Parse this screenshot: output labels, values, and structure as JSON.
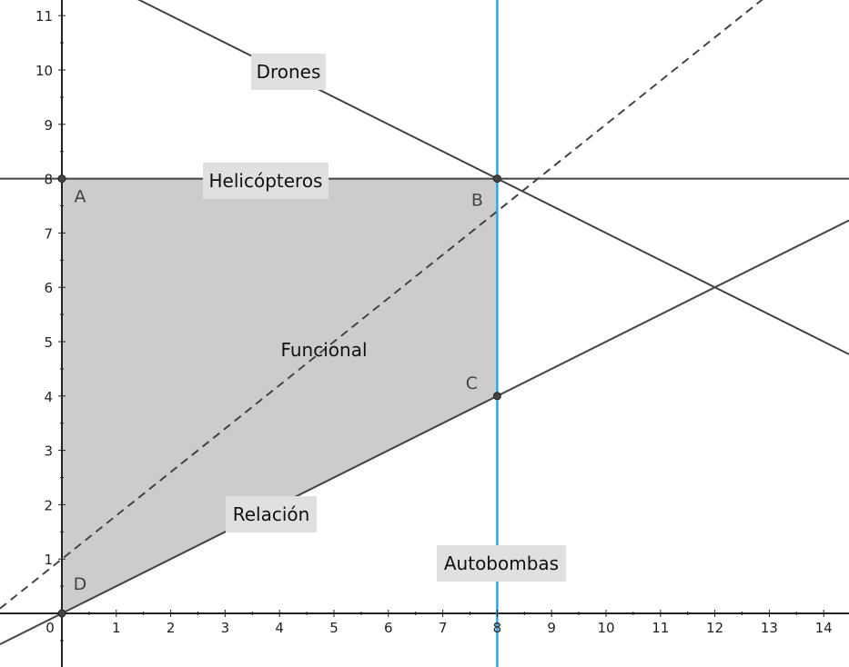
{
  "chart_data": {
    "type": "line",
    "xlim": [
      0,
      14.5
    ],
    "ylim": [
      -0.6,
      11.3
    ],
    "x_ticks": [
      0,
      1,
      2,
      3,
      4,
      5,
      6,
      7,
      8,
      9,
      10,
      11,
      12,
      13,
      14
    ],
    "y_ticks": [
      1,
      2,
      3,
      4,
      5,
      6,
      7,
      8,
      9,
      10,
      11
    ],
    "grid": false,
    "colors": {
      "axis": "#222222",
      "line": "#444444",
      "autobombas": "#29a9e6",
      "region_fill": "#cccccc",
      "label_bg": "#e0e0e0"
    },
    "feasible_region": [
      [
        0,
        8
      ],
      [
        8,
        8
      ],
      [
        8,
        4
      ],
      [
        0,
        0
      ]
    ],
    "points": [
      {
        "label": "A",
        "x": 0,
        "y": 8
      },
      {
        "label": "B",
        "x": 8,
        "y": 8
      },
      {
        "label": "C",
        "x": 8,
        "y": 4
      },
      {
        "label": "D",
        "x": 0,
        "y": 0
      }
    ],
    "lines": [
      {
        "name": "Drones",
        "equation": "x + 2y = 24",
        "style": "solid",
        "color": "#444444"
      },
      {
        "name": "Helicópteros",
        "equation": "y = 8",
        "style": "solid",
        "color": "#444444"
      },
      {
        "name": "Relación",
        "equation": "y = x / 2",
        "style": "solid",
        "color": "#444444"
      },
      {
        "name": "Autobombas",
        "equation": "x = 8",
        "style": "solid",
        "color": "#29a9e6"
      },
      {
        "name": "Funcional",
        "equation": "y = 0.8x + 1",
        "style": "dashed",
        "color": "#444444"
      }
    ]
  }
}
